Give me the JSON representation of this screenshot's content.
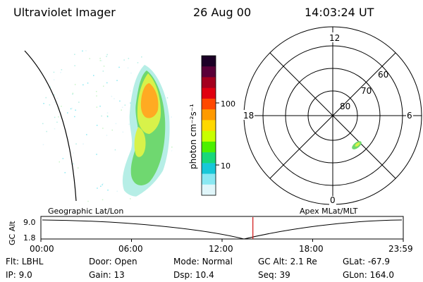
{
  "header": {
    "instrument": "Ultraviolet Imager",
    "date": "26 Aug 00",
    "time": "14:03:24 UT"
  },
  "colorbar": {
    "label": "photon cm⁻²s⁻¹",
    "ticks": [
      "100",
      "10"
    ],
    "colors": [
      "#1c0026",
      "#5a0038",
      "#a4001e",
      "#e00010",
      "#ff4800",
      "#ff9a00",
      "#ffd800",
      "#c8ff00",
      "#4cf000",
      "#18d87a",
      "#18c8d8",
      "#8ae8f2",
      "#e0f6fa"
    ]
  },
  "polar_plot": {
    "mlt_labels": [
      "12",
      "18",
      "6",
      "0"
    ],
    "mlat_labels": [
      "60",
      "70",
      "80"
    ]
  },
  "timeline": {
    "left_title": "Geographic Lat/Lon",
    "right_title": "Apex MLat/MLT",
    "axis_label": "GC Alt",
    "y_ticks": [
      "9.0",
      "1.8"
    ],
    "x_ticks": [
      "00:00",
      "06:00",
      "12:00",
      "18:00",
      "23:59"
    ],
    "current_marker_fraction": 0.585,
    "marker_color": "#d01010"
  },
  "info": {
    "flt_label": "Flt:",
    "flt_value": "LBHL",
    "door_label": "Door:",
    "door_value": "Open",
    "mode_label": "Mode:",
    "mode_value": "Normal",
    "gcalt_label": "GC Alt:",
    "gcalt_value": "2.1 Re",
    "glat_label": "GLat:",
    "glat_value": "-67.9",
    "ip_label": "IP:",
    "ip_value": "9.0",
    "gain_label": "Gain:",
    "gain_value": "13",
    "dsp_label": "Dsp:",
    "dsp_value": "10.4",
    "seq_label": "Seq:",
    "seq_value": "39",
    "glon_label": "GLon:",
    "glon_value": "164.0"
  }
}
